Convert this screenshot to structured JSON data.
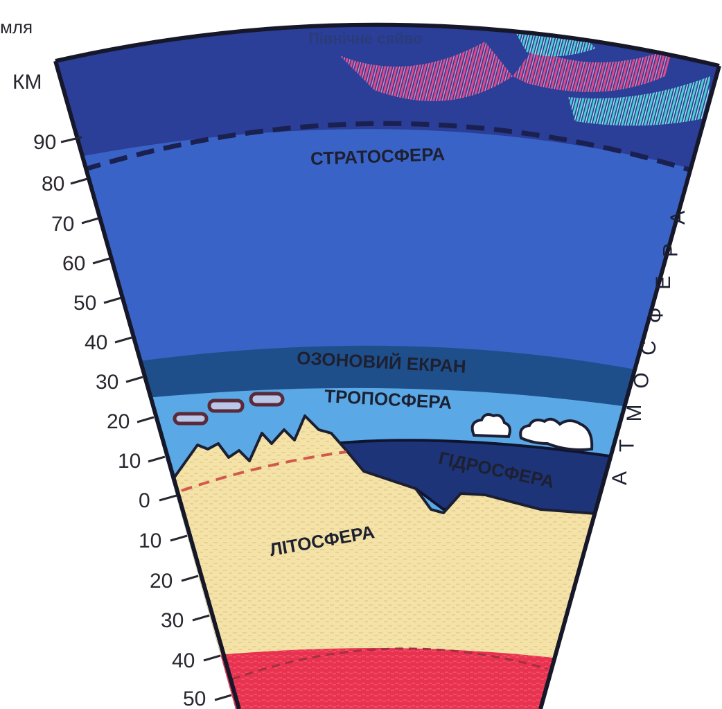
{
  "labels": {
    "corner": "мля",
    "unit": "КМ",
    "aurora": "Північне сяйво",
    "stratosphere": "СТРАТОСФЕРА",
    "ozone": "ОЗОНОВИЙ ЕКРАН",
    "troposphere": "ТРОПОСФЕРА",
    "hydrosphere": "ГІДРОСФЕРА",
    "lithosphere": "ЛІТОСФЕРА",
    "atmosphere": "АТМОСФЕРА"
  },
  "scale": {
    "above": [
      "90",
      "80",
      "70",
      "60",
      "50",
      "40",
      "30",
      "20",
      "10"
    ],
    "zero": "0",
    "below": [
      "10",
      "20",
      "30",
      "40",
      "50"
    ]
  },
  "colors": {
    "upper_sky": "#2b3e98",
    "stratosphere": "#3a63c8",
    "ozone": "#1f4f8a",
    "troposphere": "#5aa9e6",
    "ocean": "#1d3478",
    "lithosphere": "#f3e3a6",
    "mantle": "#e8324f",
    "aurora_pink": "#f04a86",
    "aurora_cyan": "#4fd8d4",
    "outline": "#1c1f33"
  }
}
